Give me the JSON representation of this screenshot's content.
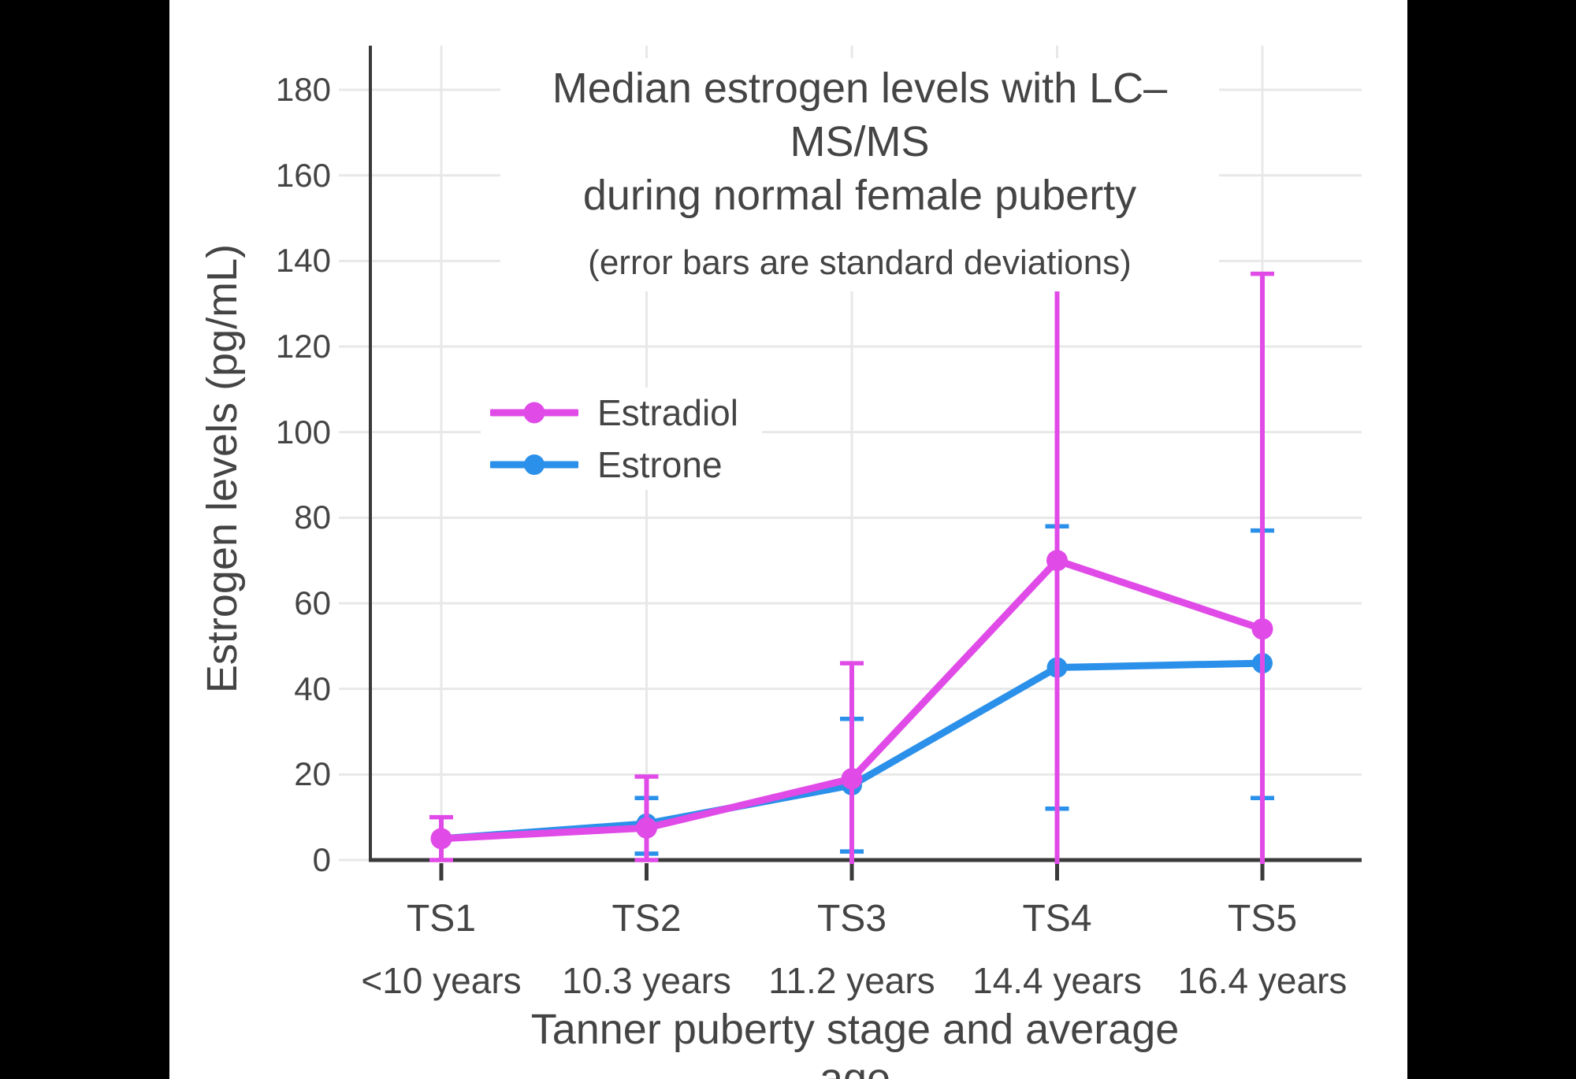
{
  "window": {
    "background": "#000000",
    "canvas_background": "#ffffff"
  },
  "chart_data": {
    "type": "line",
    "title_line1": "Median estrogen levels with LC–MS/MS",
    "title_line2": "during normal female puberty",
    "subtitle": "(error bars are standard deviations)",
    "xlabel": "Tanner puberty stage and average age",
    "ylabel": "Estrogen levels (pg/mL)",
    "x_categories": [
      {
        "stage": "TS1",
        "age": "<10 years"
      },
      {
        "stage": "TS2",
        "age": "10.3 years"
      },
      {
        "stage": "TS3",
        "age": "11.2 years"
      },
      {
        "stage": "TS4",
        "age": "14.4 years"
      },
      {
        "stage": "TS5",
        "age": "16.4 years"
      }
    ],
    "y_ticks": [
      0,
      20,
      40,
      60,
      80,
      100,
      120,
      140,
      160,
      180
    ],
    "ylim": [
      0,
      190
    ],
    "grid": true,
    "legend_position": "inside-left, above middle",
    "series": [
      {
        "name": "Estradiol",
        "color": "#E04BE8",
        "values": [
          5,
          7.5,
          19,
          70,
          54
        ],
        "error_high": [
          10,
          19.5,
          46,
          144,
          137
        ],
        "error_low": [
          0,
          0,
          null,
          null,
          null
        ],
        "cap_high": [
          true,
          true,
          true,
          false,
          true
        ],
        "cap_low": [
          true,
          true,
          false,
          false,
          false
        ]
      },
      {
        "name": "Estrone",
        "color": "#2B90E9",
        "values": [
          5,
          8.5,
          17.5,
          45,
          46
        ],
        "error_high": [
          null,
          14.5,
          33,
          78,
          77
        ],
        "error_low": [
          null,
          1.5,
          2,
          12,
          14.5
        ],
        "cap_high": [
          false,
          true,
          true,
          true,
          true
        ],
        "cap_low": [
          false,
          true,
          true,
          true,
          true
        ]
      }
    ],
    "colors": {
      "text": "#444444",
      "axis": "#3A3A3A",
      "grid": "#E8E8E8"
    }
  }
}
